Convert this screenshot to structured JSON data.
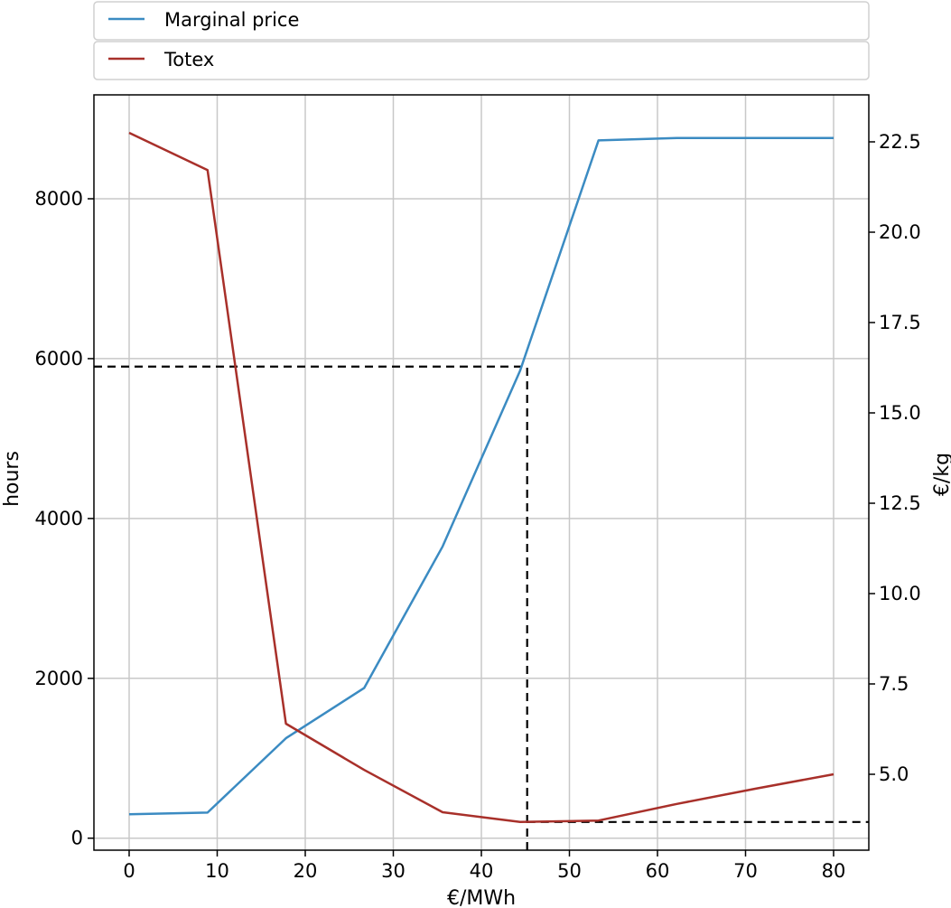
{
  "chart_data": {
    "type": "line",
    "xlabel": "€/MWh",
    "ylabel": "hours",
    "y2label": "€/kg",
    "xlim": [
      -4,
      84
    ],
    "ylim": [
      -150,
      9300
    ],
    "y2lim": [
      2.9,
      23.8
    ],
    "xticks": [
      0,
      10,
      20,
      30,
      40,
      50,
      60,
      70,
      80
    ],
    "yticks": [
      0,
      2000,
      4000,
      6000,
      8000
    ],
    "y2ticks": [
      5.0,
      7.5,
      10.0,
      12.5,
      15.0,
      17.5,
      20.0,
      22.5
    ],
    "ytick_labels": [
      "0",
      "2000",
      "4000",
      "6000",
      "8000"
    ],
    "y2tick_labels": [
      "5.0",
      "7.5",
      "10.0",
      "12.5",
      "15.0",
      "17.5",
      "20.0",
      "22.5"
    ],
    "grid": true,
    "legend_position": "top",
    "series": [
      {
        "name": "Marginal price",
        "axis": "left",
        "color": "#3b8bc2",
        "x": [
          0,
          8.9,
          17.8,
          26.7,
          35.6,
          44.4,
          53.3,
          62.2,
          71.1,
          80
        ],
        "values": [
          300,
          320,
          1250,
          1880,
          3650,
          5850,
          8730,
          8760,
          8760,
          8760
        ]
      },
      {
        "name": "Totex",
        "axis": "right",
        "color": "#a8302a",
        "x": [
          0,
          8.9,
          17.8,
          26.7,
          35.6,
          44.4,
          53.3,
          62.2,
          71.1,
          80
        ],
        "values": [
          22.75,
          21.72,
          6.4,
          5.12,
          3.95,
          3.68,
          3.72,
          4.18,
          4.6,
          5.0
        ]
      }
    ],
    "annotations": [
      {
        "type": "hline",
        "axis": "left",
        "y": 5900,
        "x_from": -4,
        "x_to": 45.2,
        "style": "dashed",
        "color": "#000000"
      },
      {
        "type": "vline",
        "x": 45.2,
        "y_from": -150,
        "y_to": 5900,
        "style": "dashed",
        "color": "#000000"
      },
      {
        "type": "hline",
        "axis": "right",
        "y": 3.68,
        "x_from": 45.2,
        "x_to": 84,
        "style": "dashed",
        "color": "#000000"
      }
    ]
  }
}
